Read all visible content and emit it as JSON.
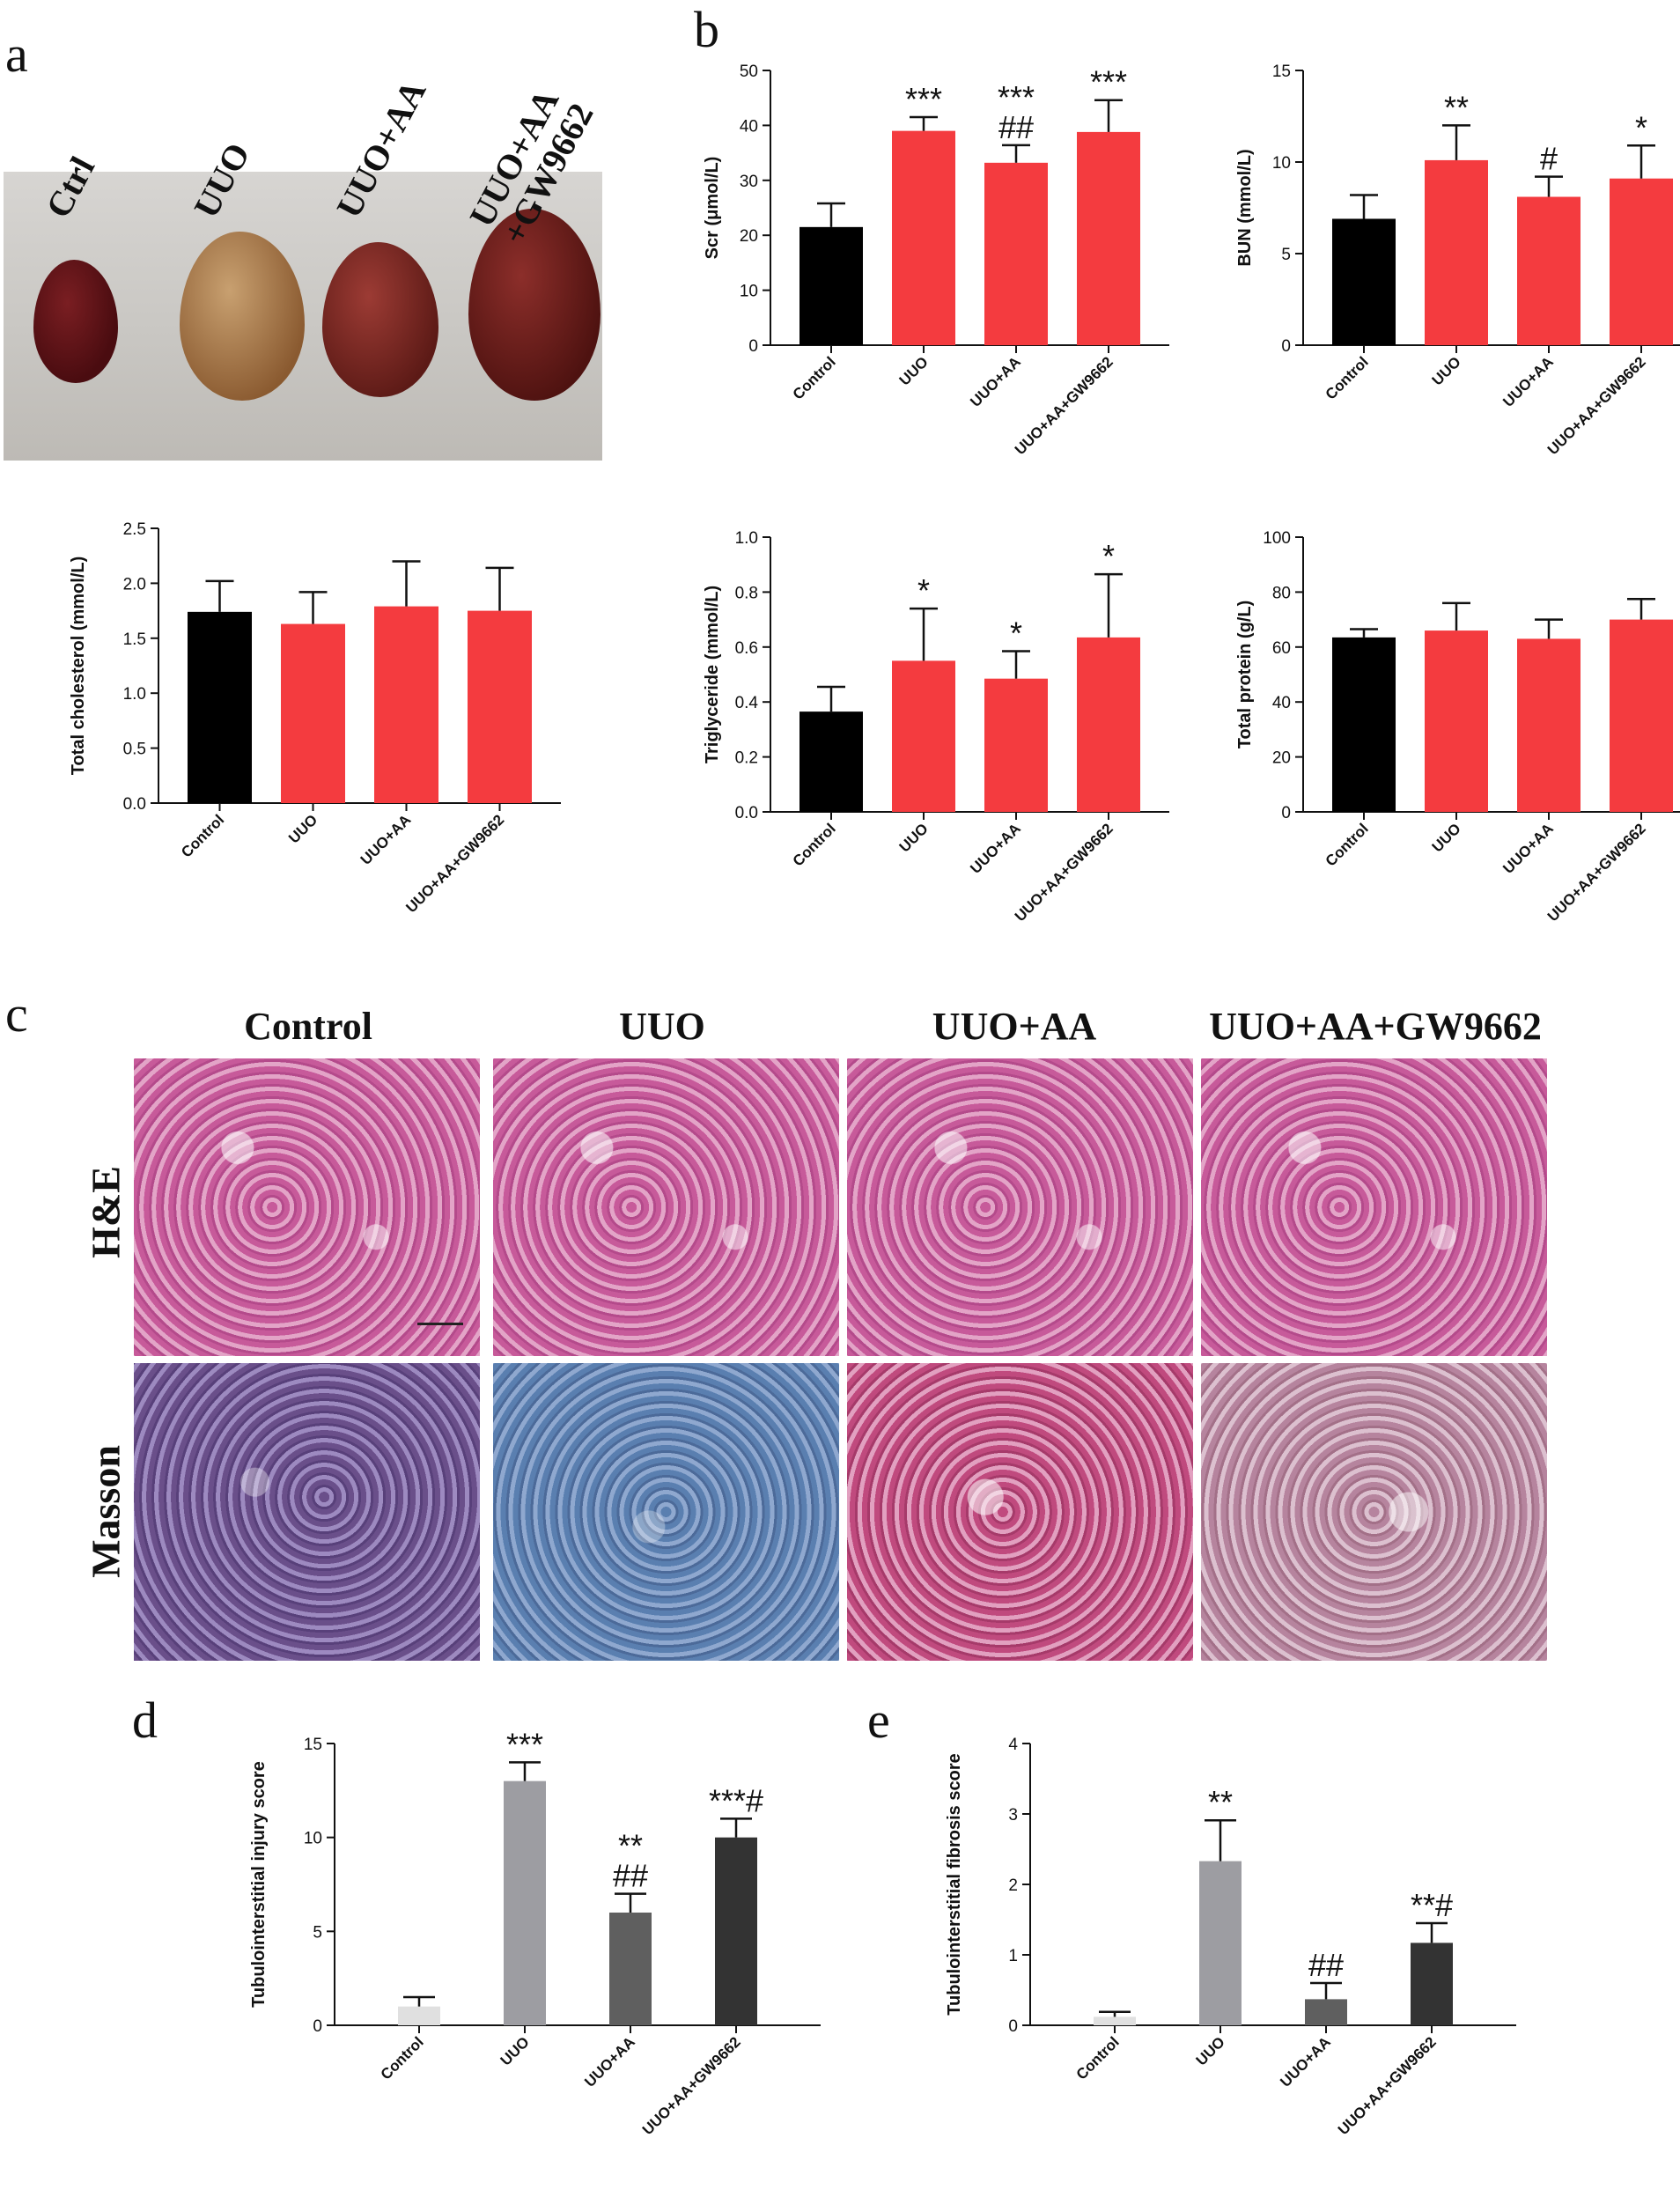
{
  "panels": {
    "a": "a",
    "b": "b",
    "c": "c",
    "d": "d",
    "e": "e"
  },
  "photo_labels": [
    "Ctrl",
    "UUO",
    "UUO+AA",
    "UUO+AA\n+GW9662"
  ],
  "micro": {
    "columns": [
      "Control",
      "UUO",
      "UUO+AA",
      "UUO+AA+GW9662"
    ],
    "rows": [
      "H&E",
      "Masson"
    ]
  },
  "colors": {
    "control": "#000000",
    "treatment": "#f43b3f",
    "grey_light": "#e0e0e0",
    "grey_mid": "#9d9da2",
    "grey_dark": "#5f5f5f",
    "grey_darkest": "#333333"
  },
  "chart_data": [
    {
      "id": "scr",
      "type": "bar",
      "categories": [
        "Control",
        "UUO",
        "UUO+AA",
        "UUO+AA+GW9662"
      ],
      "values": [
        21.5,
        39,
        33.2,
        38.8
      ],
      "errors": [
        4.3,
        2.5,
        3.2,
        5.8
      ],
      "annotations": [
        "",
        "***",
        "***\n##",
        "***"
      ],
      "ylabel": "Scr (μmol/L)",
      "ylim": [
        0,
        50
      ],
      "yticks": [
        0,
        10,
        20,
        30,
        40,
        50
      ]
    },
    {
      "id": "bun",
      "type": "bar",
      "categories": [
        "Control",
        "UUO",
        "UUO+AA",
        "UUO+AA+GW9662"
      ],
      "values": [
        6.9,
        10.1,
        8.1,
        9.1
      ],
      "errors": [
        1.3,
        1.9,
        1.1,
        1.8
      ],
      "annotations": [
        "",
        "**",
        "#",
        "*"
      ],
      "ylabel": "BUN (mmol/L)",
      "ylim": [
        0,
        15
      ],
      "yticks": [
        0,
        5,
        10,
        15
      ]
    },
    {
      "id": "tc",
      "type": "bar",
      "categories": [
        "Control",
        "UUO",
        "UUO+AA",
        "UUO+AA+GW9662"
      ],
      "values": [
        1.74,
        1.63,
        1.79,
        1.75
      ],
      "errors": [
        0.28,
        0.29,
        0.41,
        0.39
      ],
      "annotations": [
        "",
        "",
        "",
        ""
      ],
      "ylabel": "Total cholesterol  (mmol/L)",
      "ylim": [
        0,
        2.5
      ],
      "yticks": [
        0.0,
        0.5,
        1.0,
        1.5,
        2.0,
        2.5
      ]
    },
    {
      "id": "tg",
      "type": "bar",
      "categories": [
        "Control",
        "UUO",
        "UUO+AA",
        "UUO+AA+GW9662"
      ],
      "values": [
        0.365,
        0.55,
        0.485,
        0.635
      ],
      "errors": [
        0.09,
        0.19,
        0.1,
        0.23
      ],
      "annotations": [
        "",
        "*",
        "*",
        "*"
      ],
      "ylabel": "Triglyceride (mmol/L)",
      "ylim": [
        0,
        1.0
      ],
      "yticks": [
        0.0,
        0.2,
        0.4,
        0.6,
        0.8,
        1.0
      ]
    },
    {
      "id": "tp",
      "type": "bar",
      "categories": [
        "Control",
        "UUO",
        "UUO+AA",
        "UUO+AA+GW9662"
      ],
      "values": [
        63.5,
        66,
        63,
        70
      ],
      "errors": [
        3,
        10,
        7,
        7.5
      ],
      "annotations": [
        "",
        "",
        "",
        ""
      ],
      "ylabel": "Total protein  (g/L)",
      "ylim": [
        0,
        100
      ],
      "yticks": [
        0,
        20,
        40,
        60,
        80,
        100
      ]
    },
    {
      "id": "injury",
      "type": "bar",
      "categories": [
        "Control",
        "UUO",
        "UUO+AA",
        "UUO+AA+GW9662"
      ],
      "values": [
        1.0,
        13.0,
        6.0,
        10.0
      ],
      "errors": [
        0.5,
        1.0,
        1.0,
        1.0
      ],
      "annotations": [
        "",
        "***",
        "**\n##",
        "***#"
      ],
      "ylabel": "Tubulointerstitial injury score",
      "ylim": [
        0,
        15
      ],
      "yticks": [
        0,
        5,
        10,
        15
      ]
    },
    {
      "id": "fibrosis",
      "type": "bar",
      "categories": [
        "Control",
        "UUO",
        "UUO+AA",
        "UUO+AA+GW9662"
      ],
      "values": [
        0.12,
        2.33,
        0.37,
        1.17
      ],
      "errors": [
        0.07,
        0.58,
        0.23,
        0.28
      ],
      "annotations": [
        "",
        "**",
        "##",
        "**#"
      ],
      "ylabel": "Tubulointerstitial fibrosis score",
      "ylim": [
        0,
        4
      ],
      "yticks": [
        0,
        1,
        2,
        3,
        4
      ]
    }
  ]
}
